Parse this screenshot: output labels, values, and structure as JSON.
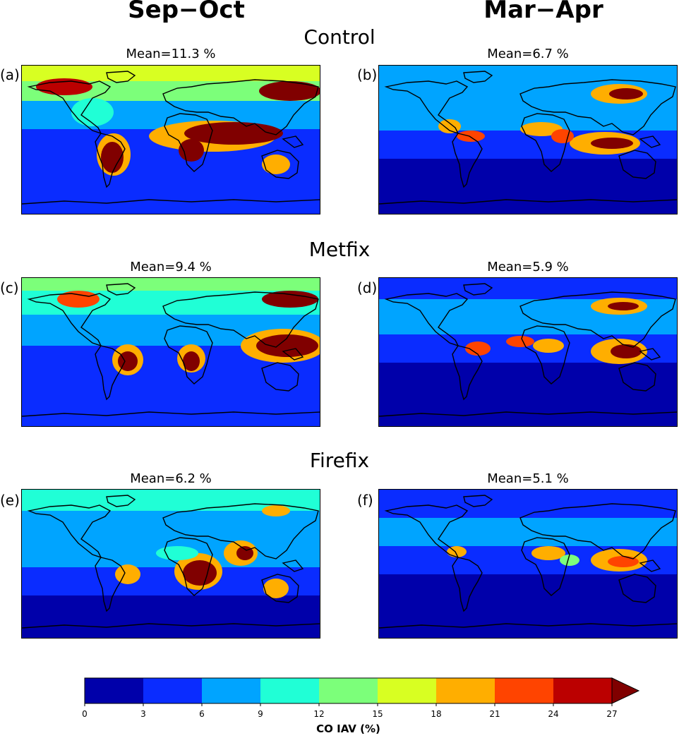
{
  "columns": [
    "Sep−Oct",
    "Mar−Apr"
  ],
  "rows": [
    "Control",
    "Metfix",
    "Firefix"
  ],
  "panels": [
    {
      "label": "(a)",
      "mean": "Mean=11.3 %",
      "scenario": "Control",
      "season": "Sep-Oct",
      "mean_value": 11.3
    },
    {
      "label": "(b)",
      "mean": "Mean=6.7 %",
      "scenario": "Control",
      "season": "Mar-Apr",
      "mean_value": 6.7
    },
    {
      "label": "(c)",
      "mean": "Mean=9.4 %",
      "scenario": "Metfix",
      "season": "Sep-Oct",
      "mean_value": 9.4
    },
    {
      "label": "(d)",
      "mean": "Mean=5.9 %",
      "scenario": "Metfix",
      "season": "Mar-Apr",
      "mean_value": 5.9
    },
    {
      "label": "(e)",
      "mean": "Mean=6.2 %",
      "scenario": "Firefix",
      "season": "Sep-Oct",
      "mean_value": 6.2
    },
    {
      "label": "(f)",
      "mean": "Mean=5.1 %",
      "scenario": "Firefix",
      "season": "Mar-Apr",
      "mean_value": 5.1
    }
  ],
  "chart_data": {
    "type": "heatmap",
    "colorbar": {
      "title": "CO IAV (%)",
      "ticks": [
        "0",
        "3",
        "6",
        "9",
        "12",
        "15",
        "18",
        "21",
        "24",
        "27"
      ],
      "levels": [
        0,
        3,
        6,
        9,
        12,
        15,
        18,
        21,
        24,
        27
      ],
      "extend": "max",
      "colors": [
        "#0000aa",
        "#0a2cff",
        "#00a4ff",
        "#20ffd6",
        "#7cff7a",
        "#d8ff22",
        "#ffae00",
        "#ff4400",
        "#bb0000",
        "#800000"
      ]
    }
  }
}
